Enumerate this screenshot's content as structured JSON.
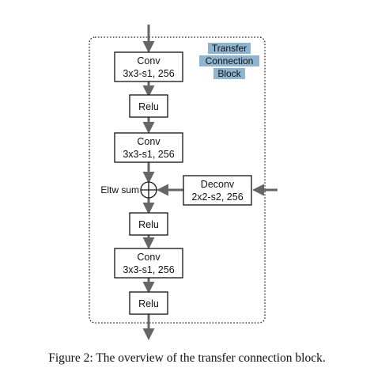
{
  "diagram": {
    "block_title": [
      "Transfer",
      "Connection",
      "Block"
    ],
    "block_title_bg": "#8fb4cf",
    "arrow_color": "#666666",
    "conv1": [
      "Conv",
      "3x3-s1, 256"
    ],
    "relu1": "Relu",
    "conv2": [
      "Conv",
      "3x3-s1, 256"
    ],
    "eltw_label": "Eltw sum",
    "deconv": [
      "Deconv",
      "2x2-s2, 256"
    ],
    "relu2": "Relu",
    "conv3": [
      "Conv",
      "3x3-s1, 256"
    ],
    "relu3": "Relu"
  },
  "caption": "Figure 2: The overview of the transfer connection block."
}
